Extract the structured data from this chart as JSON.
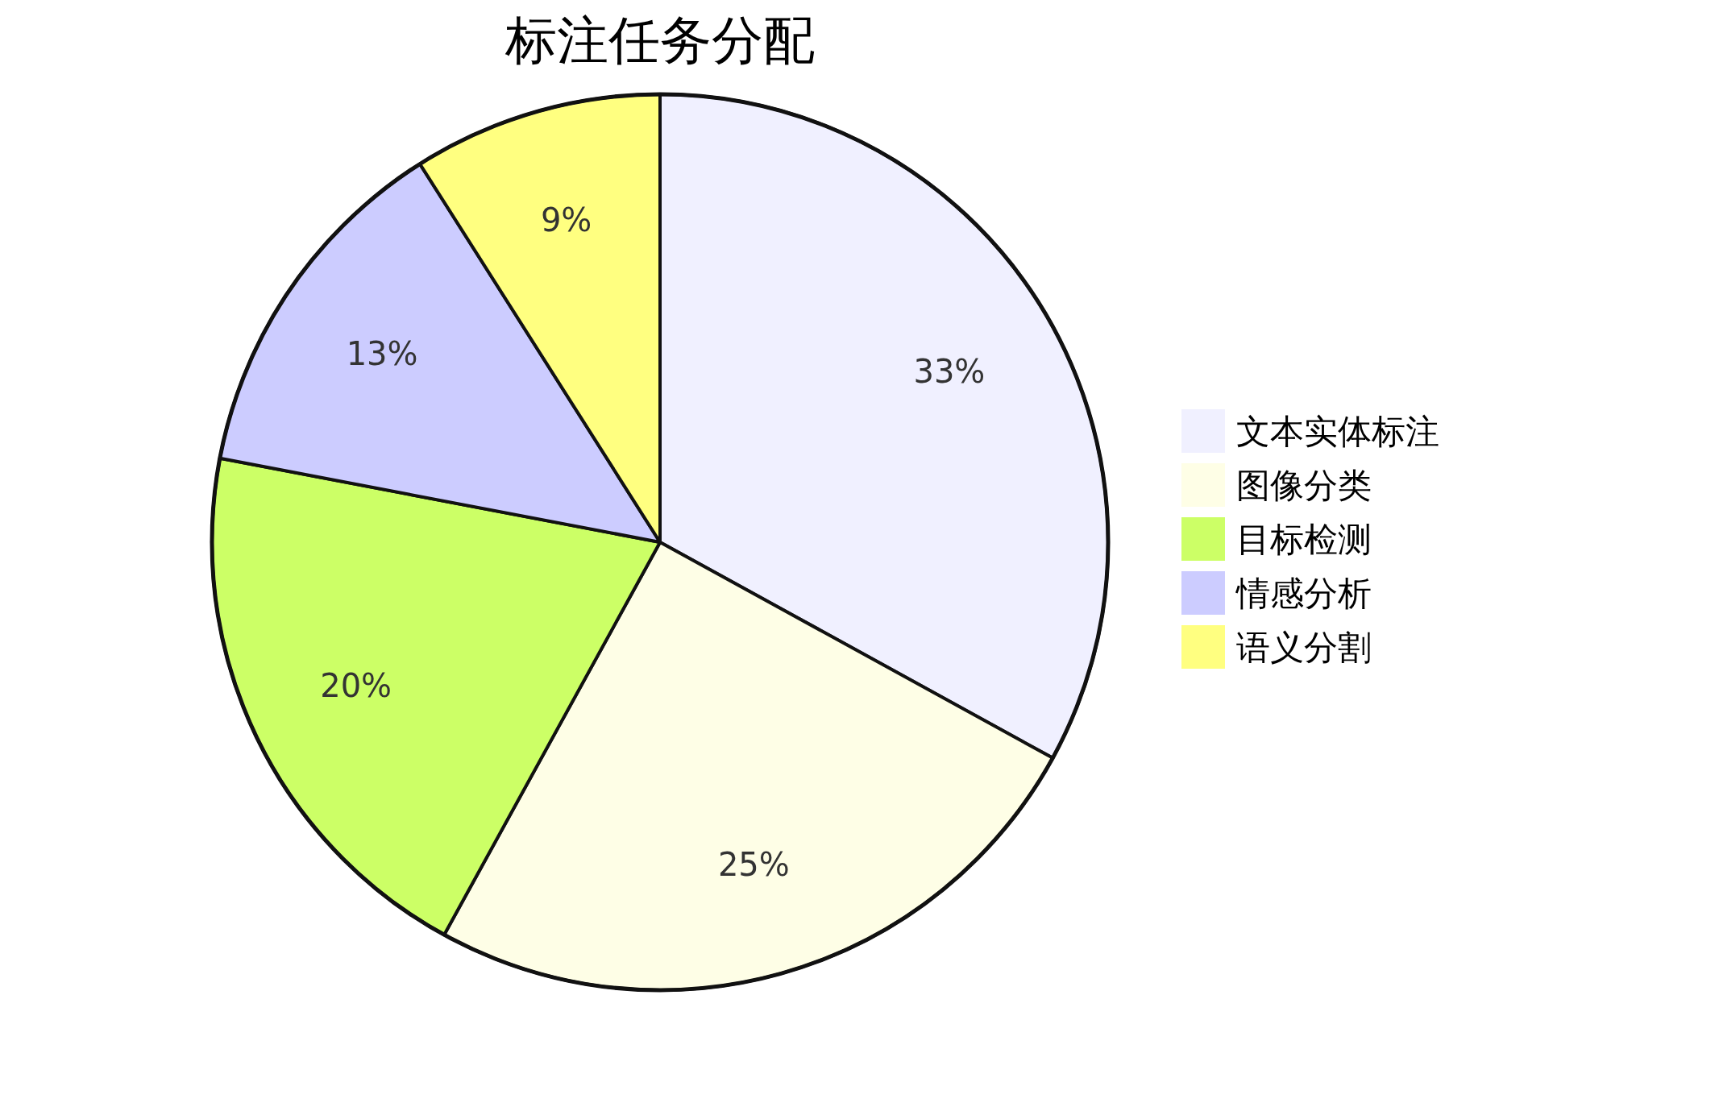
{
  "chart_data": {
    "type": "pie",
    "title": "标注任务分配",
    "categories": [
      "文本实体标注",
      "图像分类",
      "目标检测",
      "情感分析",
      "语义分割"
    ],
    "values": [
      33,
      25,
      20,
      13,
      9
    ],
    "value_labels": [
      "33%",
      "25%",
      "20%",
      "13%",
      "9%"
    ],
    "colors": [
      "#f0f0ff",
      "#fefee6",
      "#ccff66",
      "#ccccff",
      "#ffff80"
    ],
    "legend": "right"
  }
}
